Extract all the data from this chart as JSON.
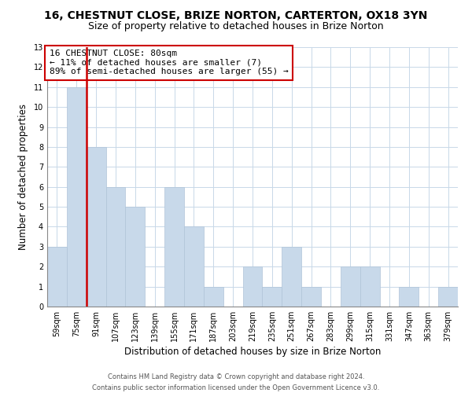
{
  "title": "16, CHESTNUT CLOSE, BRIZE NORTON, CARTERTON, OX18 3YN",
  "subtitle": "Size of property relative to detached houses in Brize Norton",
  "xlabel": "Distribution of detached houses by size in Brize Norton",
  "ylabel": "Number of detached properties",
  "bar_color": "#c8d9ea",
  "bar_edge_color": "#b0c4d8",
  "vline_color": "#cc0000",
  "annotation_text": "16 CHESTNUT CLOSE: 80sqm\n← 11% of detached houses are smaller (7)\n89% of semi-detached houses are larger (55) →",
  "annotation_box_color": "#ffffff",
  "annotation_box_edge": "#cc0000",
  "categories": [
    "59sqm",
    "75sqm",
    "91sqm",
    "107sqm",
    "123sqm",
    "139sqm",
    "155sqm",
    "171sqm",
    "187sqm",
    "203sqm",
    "219sqm",
    "235sqm",
    "251sqm",
    "267sqm",
    "283sqm",
    "299sqm",
    "315sqm",
    "331sqm",
    "347sqm",
    "363sqm",
    "379sqm"
  ],
  "values": [
    3,
    11,
    8,
    6,
    5,
    0,
    6,
    4,
    1,
    0,
    2,
    1,
    3,
    1,
    0,
    2,
    2,
    0,
    1,
    0,
    1
  ],
  "ylim": [
    0,
    13
  ],
  "yticks": [
    0,
    1,
    2,
    3,
    4,
    5,
    6,
    7,
    8,
    9,
    10,
    11,
    12,
    13
  ],
  "footer_line1": "Contains HM Land Registry data © Crown copyright and database right 2024.",
  "footer_line2": "Contains public sector information licensed under the Open Government Licence v3.0.",
  "title_fontsize": 10,
  "subtitle_fontsize": 9,
  "xlabel_fontsize": 8.5,
  "ylabel_fontsize": 8.5,
  "tick_fontsize": 7,
  "footer_fontsize": 6,
  "annotation_fontsize": 8,
  "bg_color": "#ffffff",
  "grid_color": "#c8d8e8"
}
